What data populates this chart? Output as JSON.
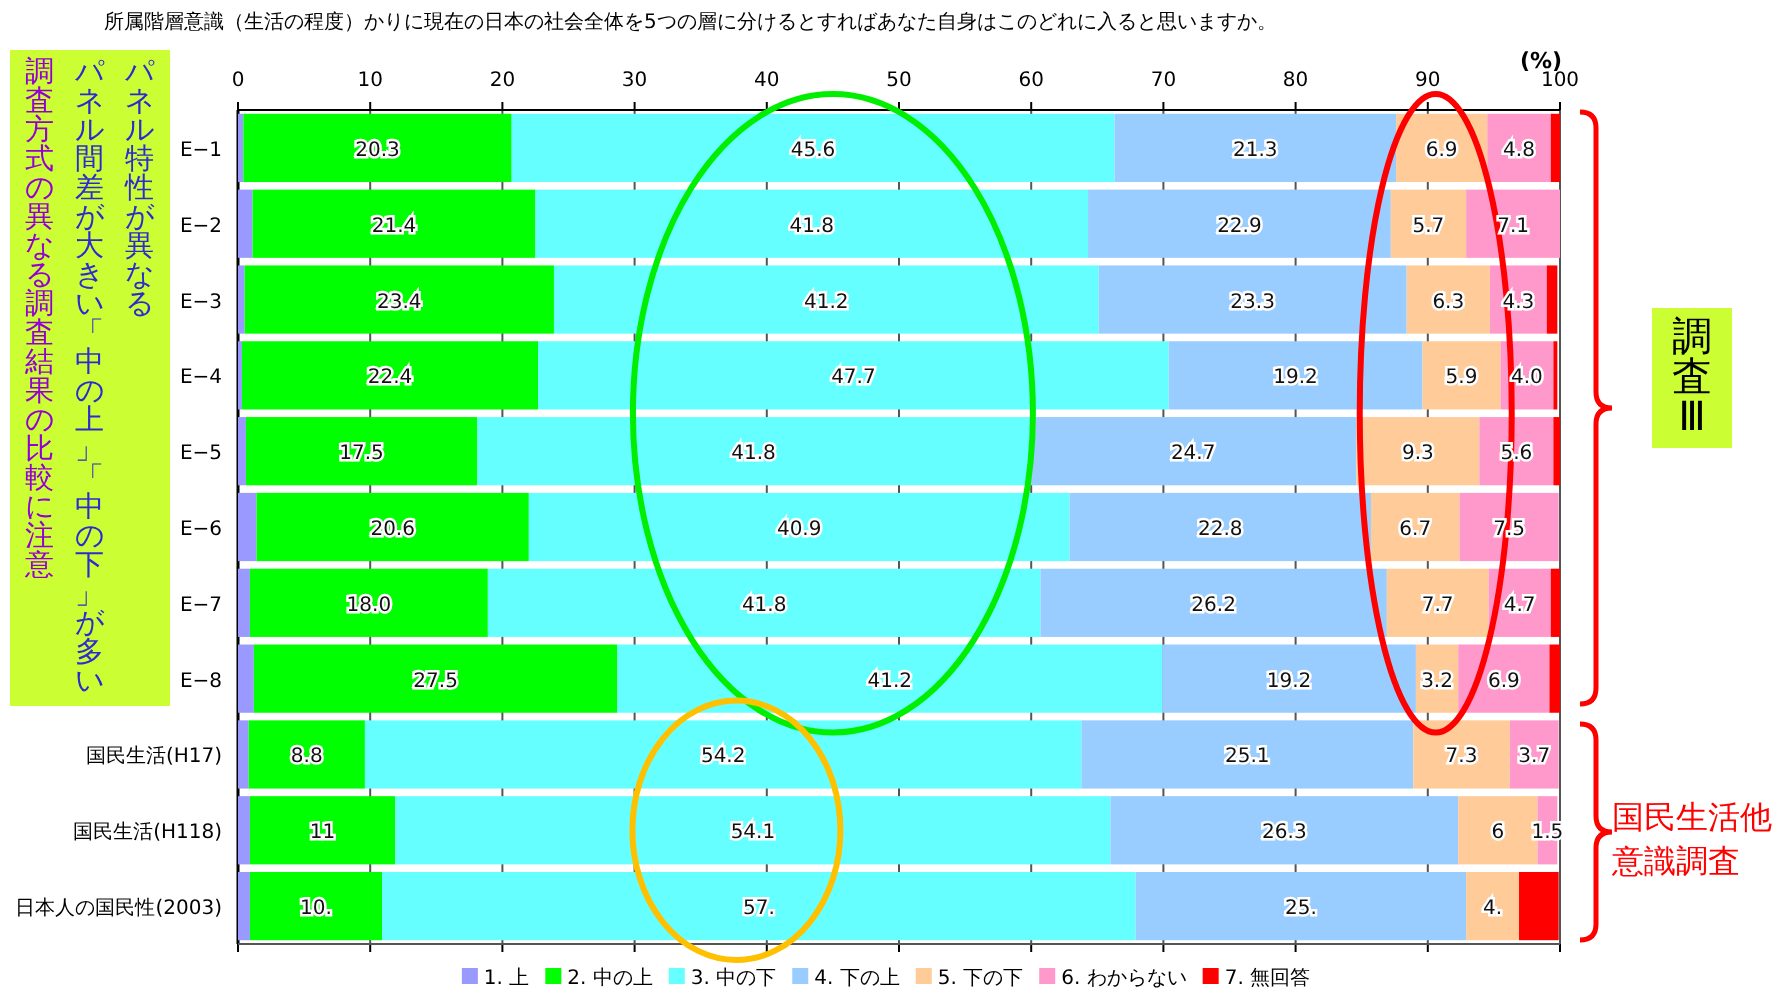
{
  "chart_data": {
    "type": "bar",
    "orientation": "horizontal",
    "stacked": true,
    "title": "所属階層意識（生活の程度）かりに現在の日本の社会全体を5つの層に分けるとすればあなた自身はこのどれに入ると思いますか。",
    "annotations": [
      "(%)",
      "パネル特性が異なる",
      "パネル間差が大きい「中の上」「中の下」が多い",
      "調査方式の異なる調査結果の比較に注意",
      "調査Ⅲ",
      "国民生活他意識調査"
    ],
    "categories": [
      "E−1",
      "E−2",
      "E−3",
      "E−4",
      "E−5",
      "E−6",
      "E−7",
      "E−8",
      "国民生活(H17)",
      "国民生活(H118)",
      "日本人の国民性(2003)"
    ],
    "series": [
      {
        "name": "1. 上",
        "color": "#9999ff",
        "values": [
          0.4,
          1.1,
          0.5,
          0.3,
          0.6,
          1.4,
          0.9,
          1.2,
          0.8,
          0.9,
          0.9
        ]
      },
      {
        "name": "2. 中の上",
        "color": "#00ff00",
        "values": [
          20.3,
          21.4,
          23.4,
          22.4,
          17.5,
          20.6,
          18.0,
          27.5,
          8.8,
          11,
          10
        ],
        "value_labels": [
          "20.3",
          "21.4",
          "23.4",
          "22.4",
          "17.5",
          "20.6",
          "18.0",
          "27.5",
          "8.8",
          "11",
          "10."
        ]
      },
      {
        "name": "3. 中の下",
        "color": "#66ffff",
        "values": [
          45.6,
          41.8,
          41.2,
          47.7,
          41.8,
          40.9,
          41.8,
          41.2,
          54.2,
          54.1,
          57
        ],
        "value_labels": [
          "45.6",
          "41.8",
          "41.2",
          "47.7",
          "41.8",
          "40.9",
          "41.8",
          "41.2",
          "54.2",
          "54.1",
          "57."
        ]
      },
      {
        "name": "4. 下の上",
        "color": "#99ccff",
        "values": [
          21.3,
          22.9,
          23.3,
          19.2,
          24.7,
          22.8,
          26.2,
          19.2,
          25.1,
          26.3,
          25
        ],
        "value_labels": [
          "21.3",
          "22.9",
          "23.3",
          "19.2",
          "24.7",
          "22.8",
          "26.2",
          "19.2",
          "25.1",
          "26.3",
          "25."
        ]
      },
      {
        "name": "5. 下の下",
        "color": "#ffcc99",
        "values": [
          6.9,
          5.7,
          6.3,
          5.9,
          9.3,
          6.7,
          7.7,
          3.2,
          7.3,
          6,
          4
        ],
        "value_labels": [
          "6.9",
          "5.7",
          "6.3",
          "5.9",
          "9.3",
          "6.7",
          "7.7",
          "3.2",
          "7.3",
          "6",
          "4."
        ]
      },
      {
        "name": "6. わからない",
        "color": "#ff99cc",
        "values": [
          4.8,
          7.1,
          4.3,
          4.0,
          5.6,
          7.5,
          4.7,
          6.9,
          3.7,
          1.5,
          0
        ],
        "value_labels": [
          "4.8",
          "7.1",
          "4.3",
          "4.0",
          "5.6",
          "7.5",
          "4.7",
          "6.9",
          "3.7",
          "1.5",
          null
        ]
      },
      {
        "name": "7. 無回答",
        "color": "#ff0000",
        "values": [
          0.7,
          0,
          0.8,
          0.3,
          0.5,
          0,
          0.7,
          0.8,
          0,
          0,
          3.0
        ]
      }
    ],
    "xlim": [
      0,
      100
    ],
    "xticks": [
      0,
      10,
      20,
      30,
      40,
      50,
      60,
      70,
      80,
      90,
      100
    ],
    "grid": "x",
    "legend": "bottom"
  }
}
